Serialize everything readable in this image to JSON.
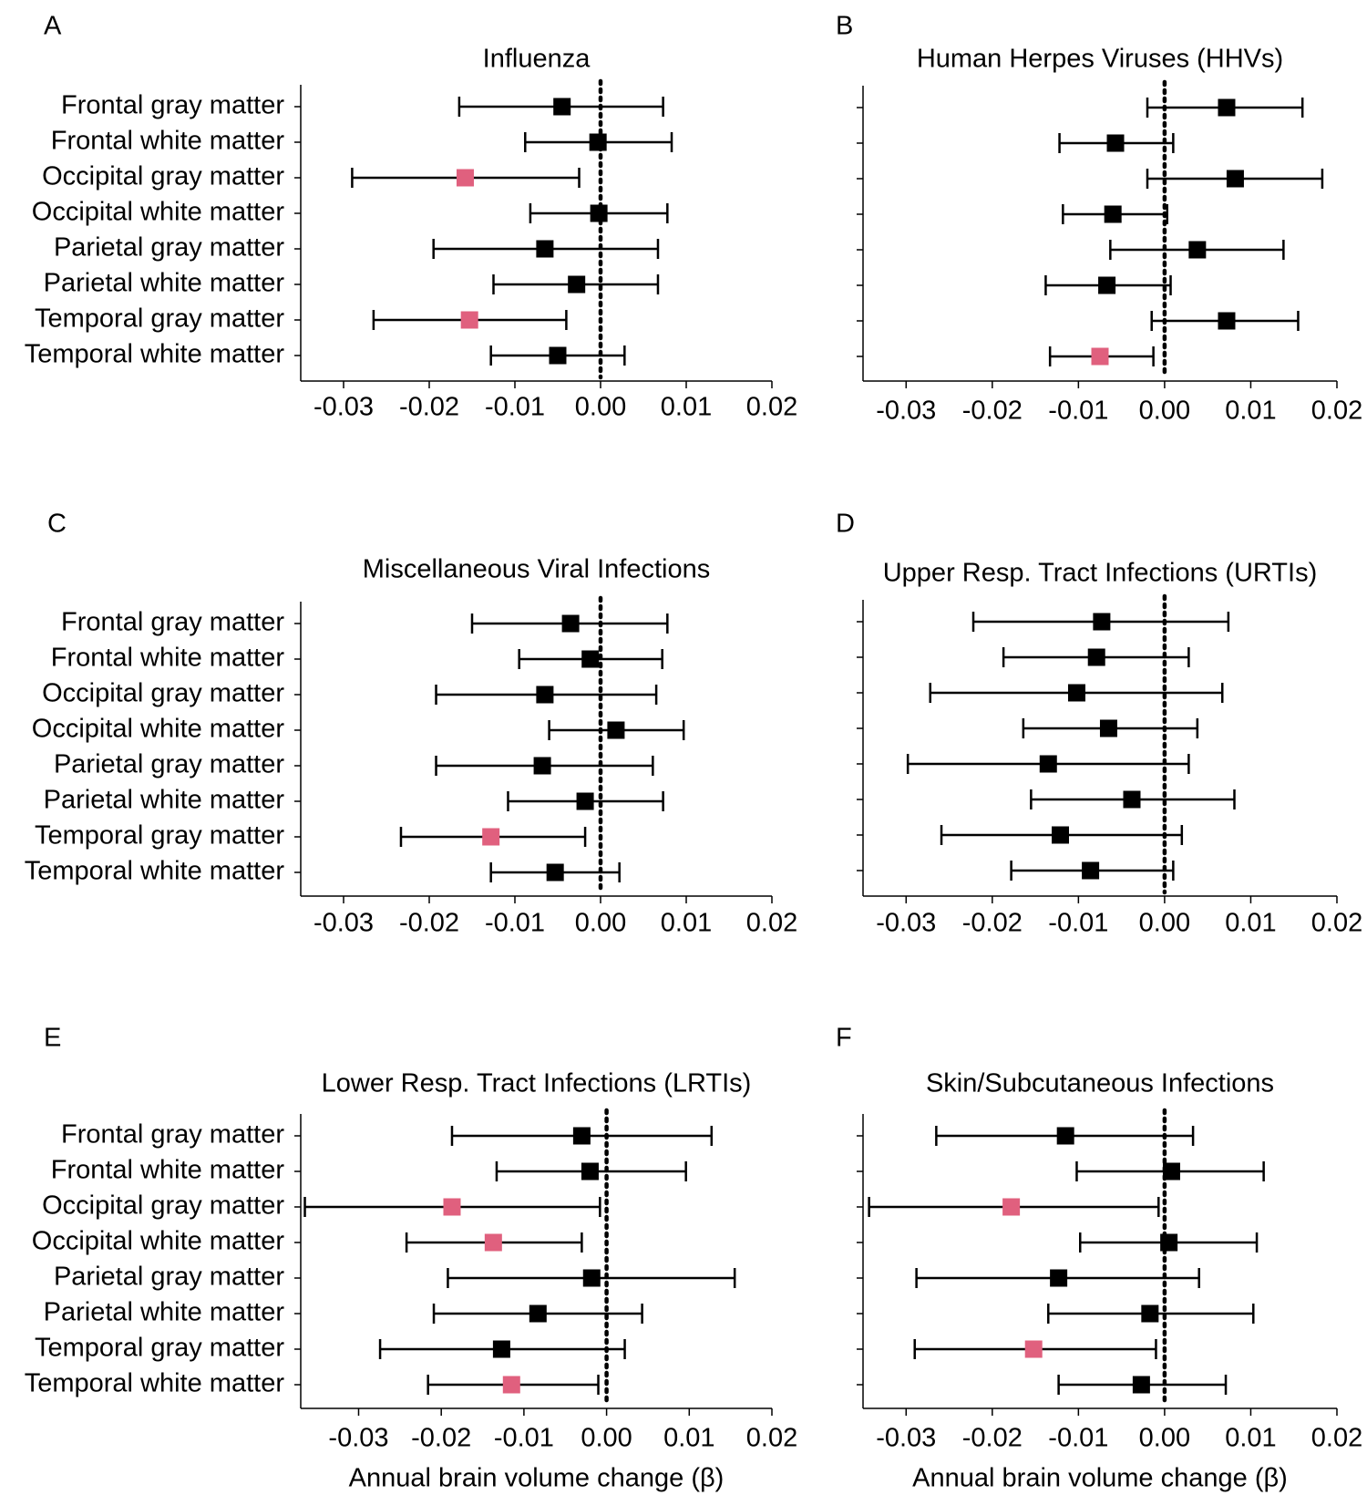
{
  "figure": {
    "rows": [
      "Frontal gray matter",
      "Frontal white matter",
      "Occipital gray matter",
      "Occipital white matter",
      "Parietal gray matter",
      "Parietal white matter",
      "Temporal gray matter",
      "Temporal white matter"
    ],
    "colors": {
      "default": "#000000",
      "significant": "#e0607e"
    },
    "xlabel": "Annual brain volume change (β)"
  },
  "chart_data": [
    {
      "type": "forest",
      "panel": "A",
      "title": "Influenza",
      "xticks": [
        -0.03,
        -0.02,
        -0.01,
        0.0,
        0.01,
        0.02
      ],
      "xtick_labels": [
        "-0.03",
        "-0.02",
        "-0.01",
        "0.00",
        "0.01",
        "0.02"
      ],
      "xlim": [
        -0.035,
        0.02
      ],
      "xlabel": "",
      "reference_line": 0.0,
      "estimates": [
        -0.0045,
        -0.0003,
        -0.0158,
        -0.0002,
        -0.0065,
        -0.0028,
        -0.0153,
        -0.005
      ],
      "ci_low": [
        -0.0165,
        -0.0088,
        -0.029,
        -0.0082,
        -0.0195,
        -0.0125,
        -0.0265,
        -0.0128
      ],
      "ci_high": [
        0.0073,
        0.0083,
        -0.0025,
        0.0078,
        0.0067,
        0.0067,
        -0.004,
        0.0028
      ],
      "significant": [
        false,
        false,
        true,
        false,
        false,
        false,
        true,
        false
      ]
    },
    {
      "type": "forest",
      "panel": "B",
      "title": "Human Herpes Viruses (HHVs)",
      "xticks": [
        -0.03,
        -0.02,
        -0.01,
        0.0,
        0.01,
        0.02
      ],
      "xtick_labels": [
        "-0.03",
        "-0.02",
        "-0.01",
        "0.00",
        "0.01",
        "0.02"
      ],
      "xlim": [
        -0.035,
        0.02
      ],
      "xlabel": "",
      "reference_line": 0.0,
      "estimates": [
        0.0072,
        -0.0057,
        0.0082,
        -0.006,
        0.0038,
        -0.0067,
        0.0072,
        -0.0075
      ],
      "ci_low": [
        -0.002,
        -0.0122,
        -0.002,
        -0.0118,
        -0.0063,
        -0.0138,
        -0.0015,
        -0.0133
      ],
      "ci_high": [
        0.016,
        0.001,
        0.0183,
        0.0003,
        0.0138,
        0.0007,
        0.0155,
        -0.0013
      ],
      "significant": [
        false,
        false,
        false,
        false,
        false,
        false,
        false,
        true
      ]
    },
    {
      "type": "forest",
      "panel": "C",
      "title": "Miscellaneous Viral Infections",
      "xticks": [
        -0.03,
        -0.02,
        -0.01,
        0.0,
        0.01,
        0.02
      ],
      "xtick_labels": [
        "-0.03",
        "-0.02",
        "-0.01",
        "0.00",
        "0.01",
        "0.02"
      ],
      "xlim": [
        -0.035,
        0.02
      ],
      "xlabel": "",
      "reference_line": 0.0,
      "estimates": [
        -0.0035,
        -0.0012,
        -0.0065,
        0.0018,
        -0.0068,
        -0.0018,
        -0.0128,
        -0.0053
      ],
      "ci_low": [
        -0.015,
        -0.0095,
        -0.0192,
        -0.006,
        -0.0192,
        -0.0108,
        -0.0233,
        -0.0128
      ],
      "ci_high": [
        0.0078,
        0.0072,
        0.0065,
        0.0097,
        0.0061,
        0.0073,
        -0.0018,
        0.0022
      ],
      "significant": [
        false,
        false,
        false,
        false,
        false,
        false,
        true,
        false
      ]
    },
    {
      "type": "forest",
      "panel": "D",
      "title": "Upper Resp. Tract Infections (URTIs)",
      "xticks": [
        -0.03,
        -0.02,
        -0.01,
        0.0,
        0.01,
        0.02
      ],
      "xtick_labels": [
        "-0.03",
        "-0.02",
        "-0.01",
        "0.00",
        "0.01",
        "0.02"
      ],
      "xlim": [
        -0.035,
        0.02
      ],
      "xlabel": "",
      "reference_line": 0.0,
      "estimates": [
        -0.0073,
        -0.0079,
        -0.0102,
        -0.0065,
        -0.0135,
        -0.0038,
        -0.0121,
        -0.0086
      ],
      "ci_low": [
        -0.0222,
        -0.0187,
        -0.0272,
        -0.0164,
        -0.0298,
        -0.0155,
        -0.0259,
        -0.0178
      ],
      "ci_high": [
        0.0074,
        0.0028,
        0.0067,
        0.0038,
        0.0028,
        0.0081,
        0.002,
        0.001
      ],
      "significant": [
        false,
        false,
        false,
        false,
        false,
        false,
        false,
        false
      ]
    },
    {
      "type": "forest",
      "panel": "E",
      "title": "Lower Resp. Tract Infections (LRTIs)",
      "xticks": [
        -0.03,
        -0.02,
        -0.01,
        0.0,
        0.01,
        0.02
      ],
      "xtick_labels": [
        "-0.03",
        "-0.02",
        "-0.01",
        "0.00",
        "0.01",
        "0.02"
      ],
      "xlim": [
        -0.037,
        0.02
      ],
      "xlabel": "Annual brain volume change (β)",
      "reference_line": 0.0,
      "estimates": [
        -0.003,
        -0.002,
        -0.0187,
        -0.0137,
        -0.0018,
        -0.0083,
        -0.0127,
        -0.0115
      ],
      "ci_low": [
        -0.0187,
        -0.0133,
        -0.0365,
        -0.0242,
        -0.0192,
        -0.0209,
        -0.0274,
        -0.0216
      ],
      "ci_high": [
        0.0127,
        0.0096,
        -0.0008,
        -0.003,
        0.0155,
        0.0043,
        0.0022,
        -0.001
      ],
      "significant": [
        false,
        false,
        true,
        true,
        false,
        false,
        false,
        true
      ]
    },
    {
      "type": "forest",
      "panel": "F",
      "title": "Skin/Subcutaneous Infections",
      "xticks": [
        -0.03,
        -0.02,
        -0.01,
        0.0,
        0.01,
        0.02
      ],
      "xtick_labels": [
        "-0.03",
        "-0.02",
        "-0.01",
        "0.00",
        "0.01",
        "0.02"
      ],
      "xlim": [
        -0.035,
        0.02
      ],
      "xlabel": "Annual brain volume change (β)",
      "reference_line": 0.0,
      "estimates": [
        -0.0115,
        0.0008,
        -0.0178,
        0.0005,
        -0.0123,
        -0.0017,
        -0.0152,
        -0.0027
      ],
      "ci_low": [
        -0.0265,
        -0.0102,
        -0.0343,
        -0.0098,
        -0.0288,
        -0.0135,
        -0.029,
        -0.0123
      ],
      "ci_high": [
        0.0033,
        0.0115,
        -0.0007,
        0.0107,
        0.004,
        0.0103,
        -0.001,
        0.0071
      ],
      "significant": [
        false,
        false,
        true,
        false,
        false,
        false,
        true,
        false
      ]
    }
  ]
}
